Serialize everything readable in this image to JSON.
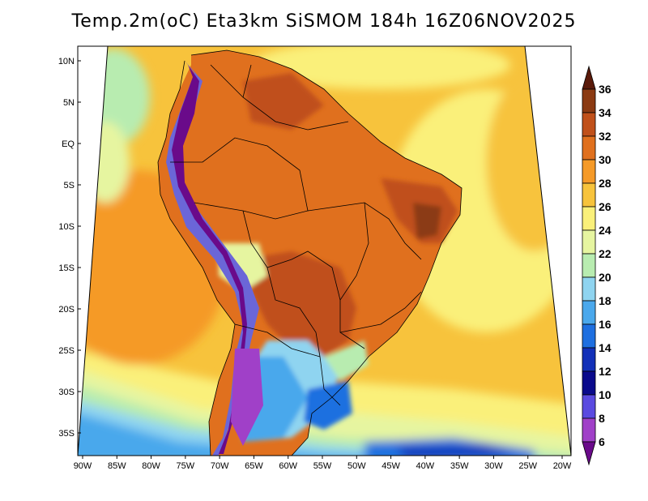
{
  "title": "Temp.2m(oC) Eta3km SiSMOM 184h 16Z06NOV2025",
  "lat_ticks": [
    "10N",
    "5N",
    "EQ",
    "5S",
    "10S",
    "15S",
    "20S",
    "25S",
    "30S",
    "35S"
  ],
  "lon_ticks": [
    "90W",
    "85W",
    "80W",
    "75W",
    "70W",
    "65W",
    "60W",
    "55W",
    "50W",
    "45W",
    "40W",
    "35W",
    "30W",
    "25W",
    "20W"
  ],
  "colorbar": {
    "labels": [
      "36",
      "34",
      "32",
      "30",
      "28",
      "26",
      "24",
      "22",
      "20",
      "18",
      "16",
      "14",
      "12",
      "10",
      "8",
      "6"
    ],
    "colors": [
      "#5a1a0a",
      "#8b3a12",
      "#c0501a",
      "#e0701e",
      "#f59a28",
      "#f7c33c",
      "#faf07a",
      "#e6f5a0",
      "#b8ecb0",
      "#8fd4f0",
      "#4aa8ec",
      "#1e6fe0",
      "#1230b8",
      "#0a0a8c",
      "#5a4ae0",
      "#a040c8",
      "#6a0a8a"
    ]
  }
}
